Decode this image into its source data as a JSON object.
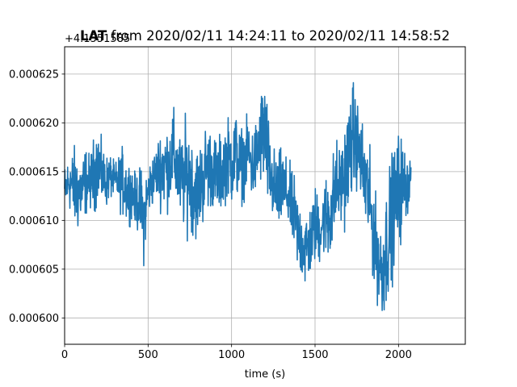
{
  "chart_data": {
    "type": "line",
    "title_bold": "LAT",
    "title_rest": " from 2020/02/11 14:24:11 to 2020/02/11 14:58:52",
    "offset_text": "+4.1551585",
    "xlabel": "time (s)",
    "ylabel": "",
    "xlim": [
      0,
      2400
    ],
    "ylim": [
      0.0005973,
      0.0006278
    ],
    "x_ticks": [
      0,
      500,
      1000,
      1500,
      2000
    ],
    "x_tick_labels": [
      "0",
      "500",
      "1000",
      "1500",
      "2000"
    ],
    "y_ticks": [
      0.0006,
      0.000605,
      0.00061,
      0.000615,
      0.00062,
      0.000625
    ],
    "y_tick_labels": [
      "0.000600",
      "0.000605",
      "0.000610",
      "0.000615",
      "0.000620",
      "0.000625"
    ],
    "grid": true,
    "line_color": "#1f77b4",
    "series": [
      {
        "x": [
          0,
          25,
          50,
          75,
          100,
          125,
          150,
          175,
          200,
          225,
          250,
          275,
          300,
          325,
          350,
          375,
          400,
          425,
          450,
          475,
          500,
          525,
          550,
          575,
          600,
          625,
          650,
          675,
          700,
          725,
          750,
          775,
          800,
          825,
          850,
          875,
          900,
          925,
          950,
          975,
          1000,
          1025,
          1050,
          1075,
          1100,
          1125,
          1150,
          1175,
          1200,
          1225,
          1250,
          1275,
          1300,
          1325,
          1350,
          1375,
          1400,
          1425,
          1450,
          1475,
          1500,
          1525,
          1550,
          1575,
          1600,
          1625,
          1650,
          1675,
          1700,
          1725,
          1750,
          1775,
          1800,
          1825,
          1850,
          1875,
          1900,
          1925,
          1950,
          1975,
          2000,
          2025,
          2050,
          2075
        ],
        "y_low": [
          0.00061,
          0.000611,
          0.000609,
          0.000608,
          0.000609,
          0.00061,
          0.000611,
          0.00061,
          0.000612,
          0.000611,
          0.000611,
          0.000612,
          0.000612,
          0.000611,
          0.00061,
          0.000609,
          0.00061,
          0.000609,
          0.000608,
          0.000605,
          0.00061,
          0.000611,
          0.000612,
          0.000611,
          0.00061,
          0.000611,
          0.000612,
          0.00061,
          0.000609,
          0.000608,
          0.000609,
          0.000607,
          0.000608,
          0.000609,
          0.00061,
          0.000611,
          0.00061,
          0.00061,
          0.000611,
          0.000612,
          0.000611,
          0.000612,
          0.000611,
          0.000612,
          0.000613,
          0.000611,
          0.000612,
          0.000613,
          0.000612,
          0.00061,
          0.000609,
          0.000608,
          0.000609,
          0.000609,
          0.000608,
          0.000606,
          0.000604,
          0.000603,
          0.000602,
          0.000604,
          0.000605,
          0.000605,
          0.000606,
          0.000605,
          0.000605,
          0.000608,
          0.000609,
          0.000609,
          0.00061,
          0.000612,
          0.000613,
          0.000611,
          0.000608,
          0.000606,
          0.000603,
          0.000601,
          0.000599,
          0.0006,
          0.000602,
          0.000605,
          0.000606,
          0.000608,
          0.00061,
          0.000612
        ],
        "y_high": [
          0.000616,
          0.000617,
          0.000618,
          0.000618,
          0.000617,
          0.000618,
          0.000617,
          0.000619,
          0.00062,
          0.000618,
          0.000617,
          0.000617,
          0.000616,
          0.000617,
          0.000618,
          0.000617,
          0.000616,
          0.000615,
          0.000616,
          0.000615,
          0.000616,
          0.000617,
          0.000618,
          0.00062,
          0.000621,
          0.00062,
          0.000622,
          0.00062,
          0.000619,
          0.000621,
          0.00062,
          0.000619,
          0.000618,
          0.000619,
          0.000621,
          0.00062,
          0.000619,
          0.000619,
          0.00062,
          0.000621,
          0.000621,
          0.000622,
          0.00062,
          0.00062,
          0.000621,
          0.00062,
          0.000621,
          0.000624,
          0.000626,
          0.00062,
          0.000618,
          0.000617,
          0.000618,
          0.000617,
          0.000616,
          0.000615,
          0.000613,
          0.000612,
          0.000612,
          0.000612,
          0.000614,
          0.000613,
          0.000614,
          0.000616,
          0.000617,
          0.000619,
          0.000618,
          0.00062,
          0.000623,
          0.000625,
          0.000623,
          0.000621,
          0.00062,
          0.000618,
          0.000614,
          0.000612,
          0.00061,
          0.000614,
          0.000617,
          0.000618,
          0.00062,
          0.000619,
          0.000617,
          0.000617
        ]
      }
    ]
  }
}
